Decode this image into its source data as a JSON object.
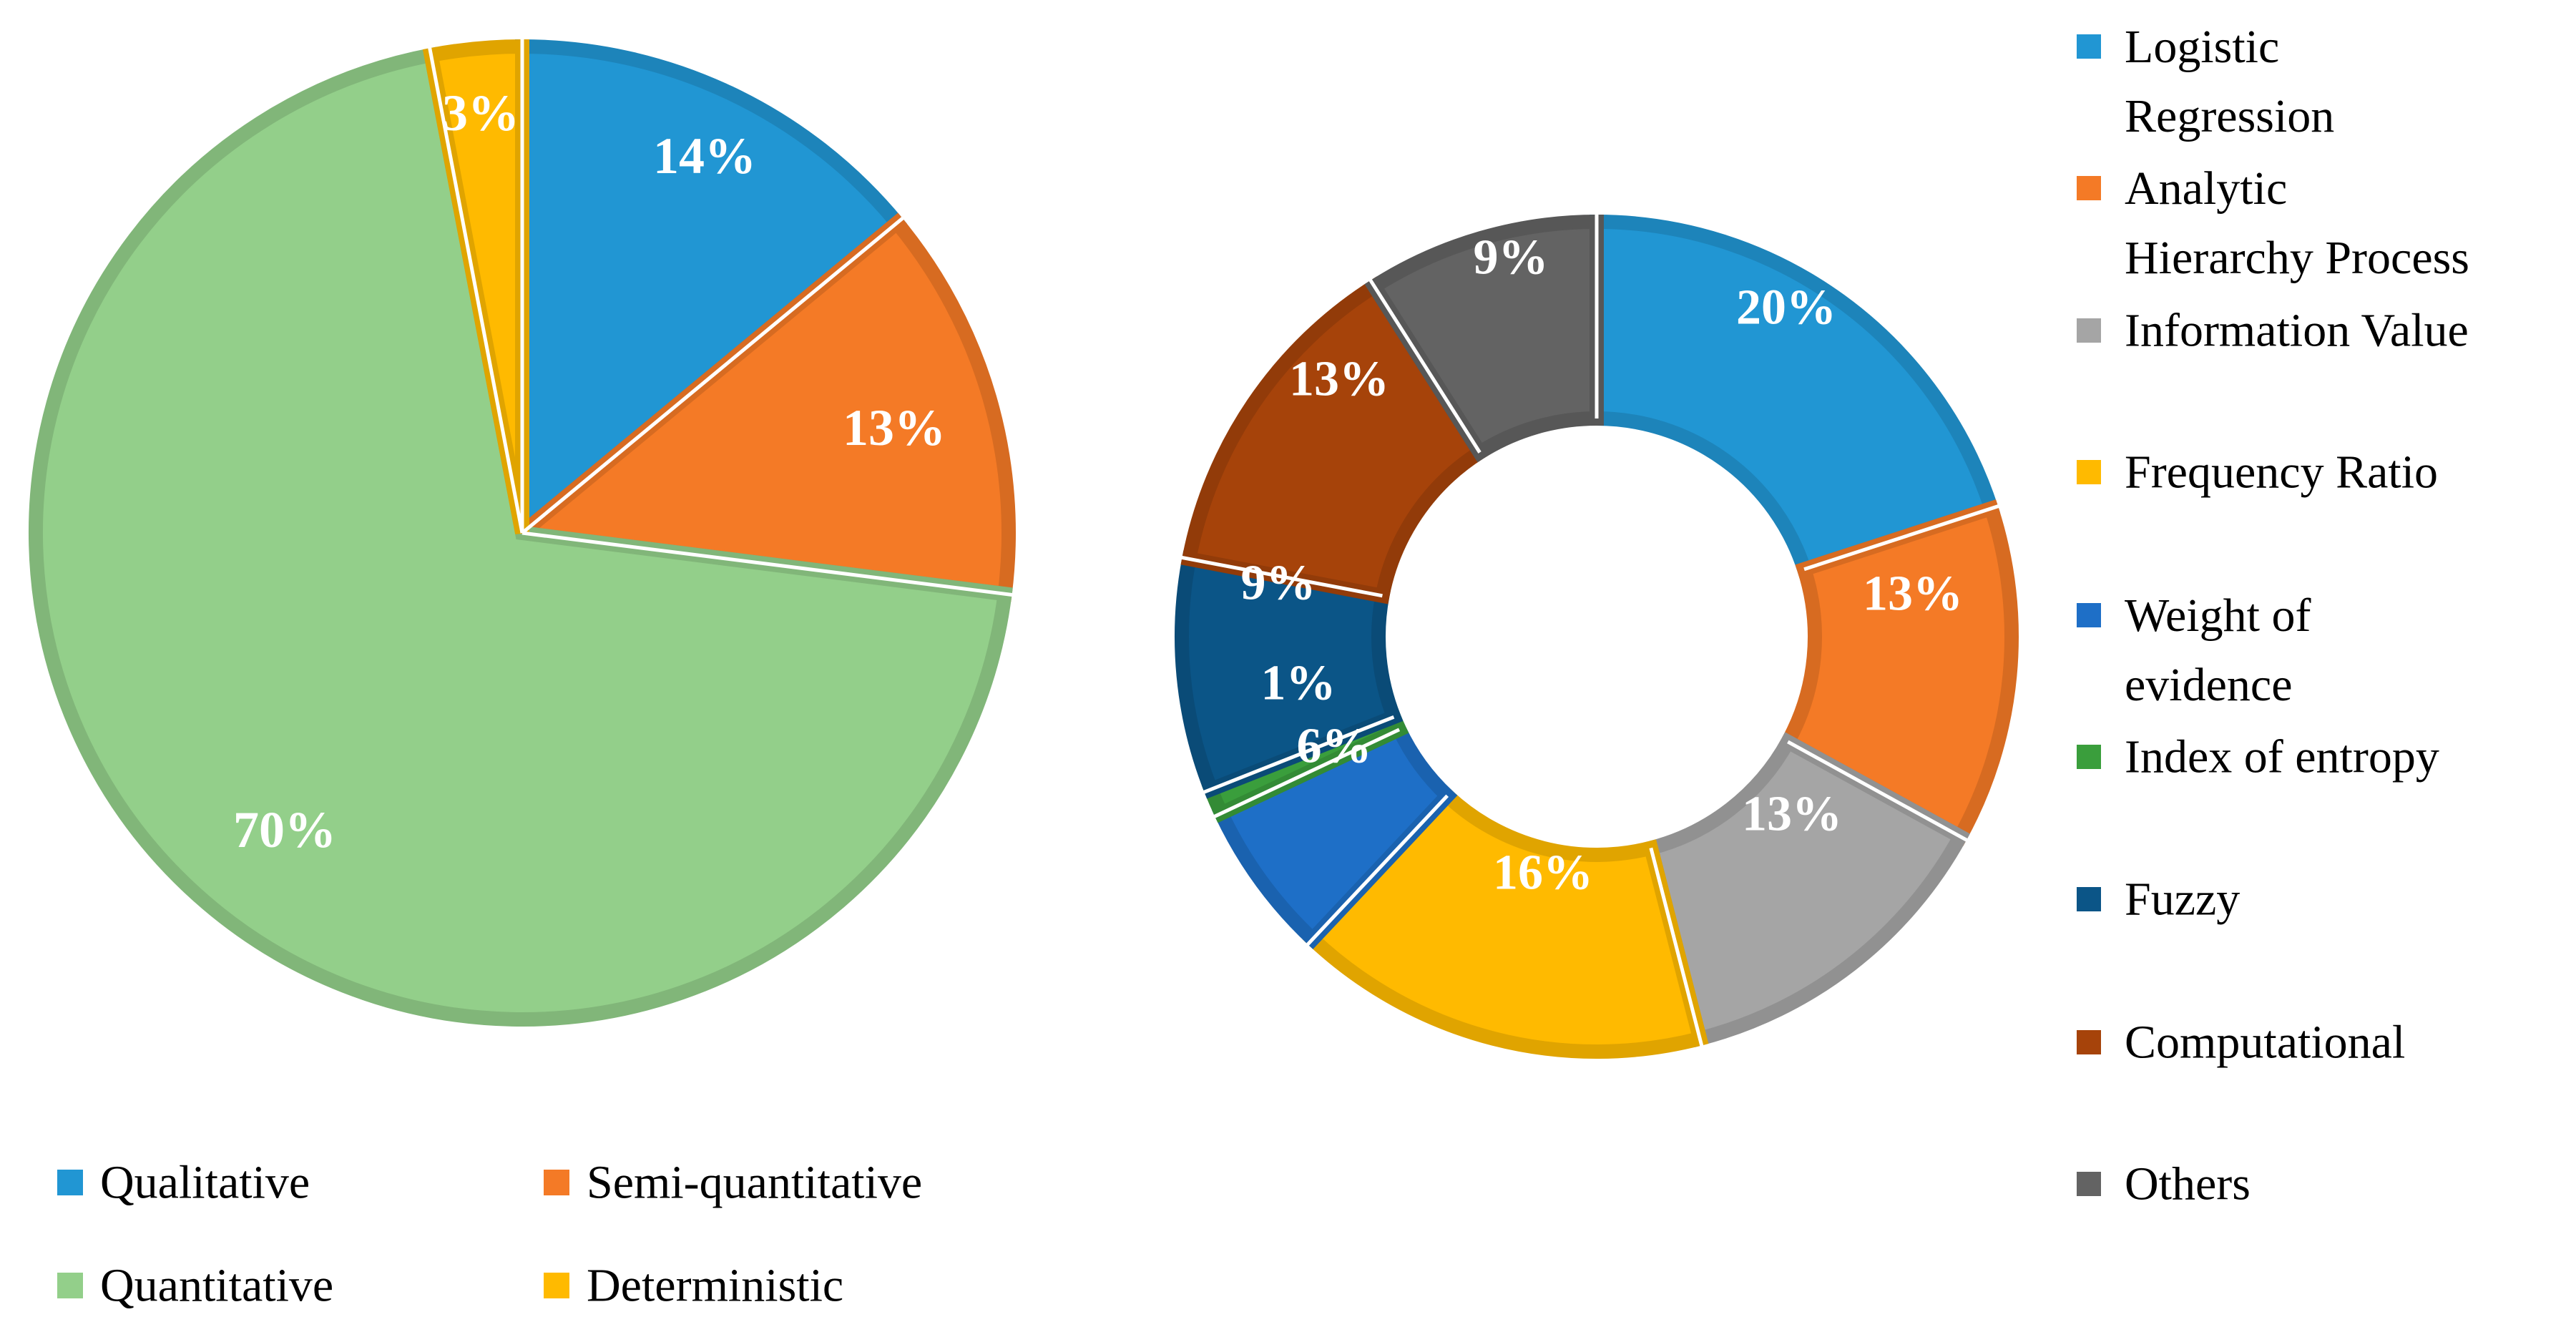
{
  "chart_data": [
    {
      "type": "pie",
      "title": "",
      "categories": [
        "Qualitative",
        "Semi-quantitative",
        "Quantitative",
        "Deterministic"
      ],
      "values": [
        14,
        13,
        70,
        3
      ],
      "data_labels": [
        "14%",
        "13%",
        "70%",
        "3%"
      ],
      "colors": [
        "#2196D3",
        "#F47A26",
        "#93CF8A",
        "#FFBA00"
      ],
      "legend_position": "bottom"
    },
    {
      "type": "pie",
      "subtype": "doughnut",
      "title": "",
      "categories": [
        "Logistic Regression",
        "Analytic Hierarchy Process",
        "Information Value",
        "Frequency Ratio",
        "Weight of evidence",
        "Index of entropy",
        "Fuzzy",
        "Computational",
        "Others"
      ],
      "values": [
        20,
        13,
        13,
        16,
        6,
        1,
        9,
        13,
        9
      ],
      "data_labels": [
        "20%",
        "13%",
        "13%",
        "16%",
        "6%",
        "1%",
        "9%",
        "13%",
        "9%"
      ],
      "colors": [
        "#2196D3",
        "#F47A26",
        "#A5A5A5",
        "#FFBA00",
        "#1E6FC7",
        "#3A9E3C",
        "#0B5587",
        "#A6430A",
        "#636363"
      ],
      "legend_position": "right"
    }
  ]
}
